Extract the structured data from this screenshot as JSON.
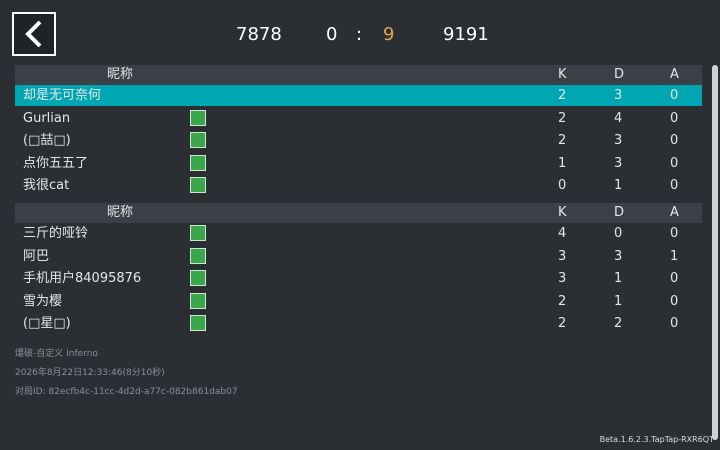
{
  "header": {
    "left_score": "7878",
    "round_left": "0",
    "separator": ":",
    "round_right": "9",
    "right_score": "9191"
  },
  "teams": [
    {
      "columns": [
        "昵称",
        "K",
        "D",
        "A"
      ],
      "rows": [
        {
          "name": "却是无可奈何",
          "k": 2,
          "d": 3,
          "a": 0,
          "highlight": true
        },
        {
          "name": "Gurlian",
          "k": 2,
          "d": 4,
          "a": 0
        },
        {
          "name": "(□喆□)",
          "k": 2,
          "d": 3,
          "a": 0
        },
        {
          "name": "点你五五了",
          "k": 1,
          "d": 3,
          "a": 0
        },
        {
          "name": "我很cat",
          "k": 0,
          "d": 1,
          "a": 0
        }
      ]
    },
    {
      "columns": [
        "昵称",
        "K",
        "D",
        "A"
      ],
      "rows": [
        {
          "name": "三斤的哑铃",
          "k": 4,
          "d": 0,
          "a": 0
        },
        {
          "name": "阿巴",
          "k": 3,
          "d": 3,
          "a": 1
        },
        {
          "name": "手机用户84095876",
          "k": 3,
          "d": 1,
          "a": 0
        },
        {
          "name": "雪为樱",
          "k": 2,
          "d": 1,
          "a": 0
        },
        {
          "name": "(□星□)",
          "k": 2,
          "d": 2,
          "a": 0
        }
      ]
    }
  ],
  "footer": {
    "mode": "爆破-自定义 Inferno",
    "time": "2026年8月22日12:33:46(8分10秒)",
    "match_id": "对局ID: 82ecfb4c-11cc-4d2d-a77c-082b861dab07",
    "version": "Beta.1.6.2.3.TapTap-RXR6QT"
  }
}
